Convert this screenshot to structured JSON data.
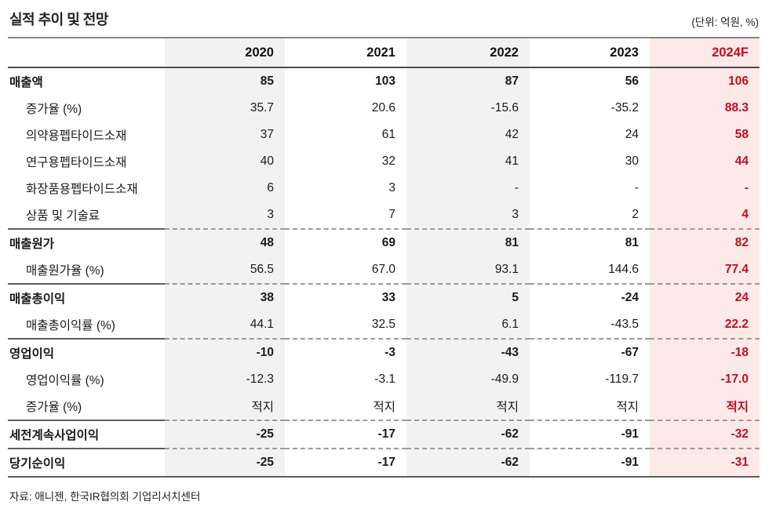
{
  "title": "실적 추이 및 전망",
  "unit_note": "(단위: 억원, %)",
  "source_note": "자료: 애니젠, 한국IR협의회 기업리서치센터",
  "colors": {
    "accent_red": "#c00e1e",
    "forecast_bg": "#fce9e8",
    "stripe_bg": "#f2f2f2"
  },
  "table": {
    "columns": [
      {
        "label": "",
        "variant": "label"
      },
      {
        "label": "2020",
        "variant": "stripe"
      },
      {
        "label": "2021",
        "variant": "plain"
      },
      {
        "label": "2022",
        "variant": "stripe"
      },
      {
        "label": "2023",
        "variant": "plain"
      },
      {
        "label": "2024F",
        "variant": "forecast"
      }
    ],
    "rows": [
      {
        "label": "매출액",
        "bold": true,
        "indent": false,
        "section_start": false,
        "values": [
          "85",
          "103",
          "87",
          "56",
          "106"
        ]
      },
      {
        "label": "증가율 (%)",
        "bold": false,
        "indent": true,
        "section_start": false,
        "values": [
          "35.7",
          "20.6",
          "-15.6",
          "-35.2",
          "88.3"
        ]
      },
      {
        "label": "의약용펩타이드소재",
        "bold": false,
        "indent": true,
        "section_start": false,
        "values": [
          "37",
          "61",
          "42",
          "24",
          "58"
        ]
      },
      {
        "label": "연구용펩타이드소재",
        "bold": false,
        "indent": true,
        "section_start": false,
        "values": [
          "40",
          "32",
          "41",
          "30",
          "44"
        ]
      },
      {
        "label": "화장품용펩타이드소재",
        "bold": false,
        "indent": true,
        "section_start": false,
        "values": [
          "6",
          "3",
          "-",
          "-",
          "-"
        ]
      },
      {
        "label": "상품 및 기술료",
        "bold": false,
        "indent": true,
        "section_start": false,
        "values": [
          "3",
          "7",
          "3",
          "2",
          "4"
        ]
      },
      {
        "label": "매출원가",
        "bold": true,
        "indent": false,
        "section_start": true,
        "values": [
          "48",
          "69",
          "81",
          "81",
          "82"
        ]
      },
      {
        "label": "매출원가율 (%)",
        "bold": false,
        "indent": true,
        "section_start": false,
        "values": [
          "56.5",
          "67.0",
          "93.1",
          "144.6",
          "77.4"
        ]
      },
      {
        "label": "매출총이익",
        "bold": true,
        "indent": false,
        "section_start": true,
        "values": [
          "38",
          "33",
          "5",
          "-24",
          "24"
        ]
      },
      {
        "label": "매출총이익률 (%)",
        "bold": false,
        "indent": true,
        "section_start": false,
        "values": [
          "44.1",
          "32.5",
          "6.1",
          "-43.5",
          "22.2"
        ]
      },
      {
        "label": "영업이익",
        "bold": true,
        "indent": false,
        "section_start": true,
        "values": [
          "-10",
          "-3",
          "-43",
          "-67",
          "-18"
        ]
      },
      {
        "label": "영업이익률 (%)",
        "bold": false,
        "indent": true,
        "section_start": false,
        "values": [
          "-12.3",
          "-3.1",
          "-49.9",
          "-119.7",
          "-17.0"
        ]
      },
      {
        "label": "증가율 (%)",
        "bold": false,
        "indent": true,
        "section_start": false,
        "values": [
          "적지",
          "적지",
          "적지",
          "적지",
          "적지"
        ]
      },
      {
        "label": "세전계속사업이익",
        "bold": true,
        "indent": false,
        "section_start": true,
        "values": [
          "-25",
          "-17",
          "-62",
          "-91",
          "-32"
        ]
      },
      {
        "label": "당기순이익",
        "bold": true,
        "indent": false,
        "section_start": true,
        "values": [
          "-25",
          "-17",
          "-62",
          "-91",
          "-31"
        ]
      }
    ]
  }
}
